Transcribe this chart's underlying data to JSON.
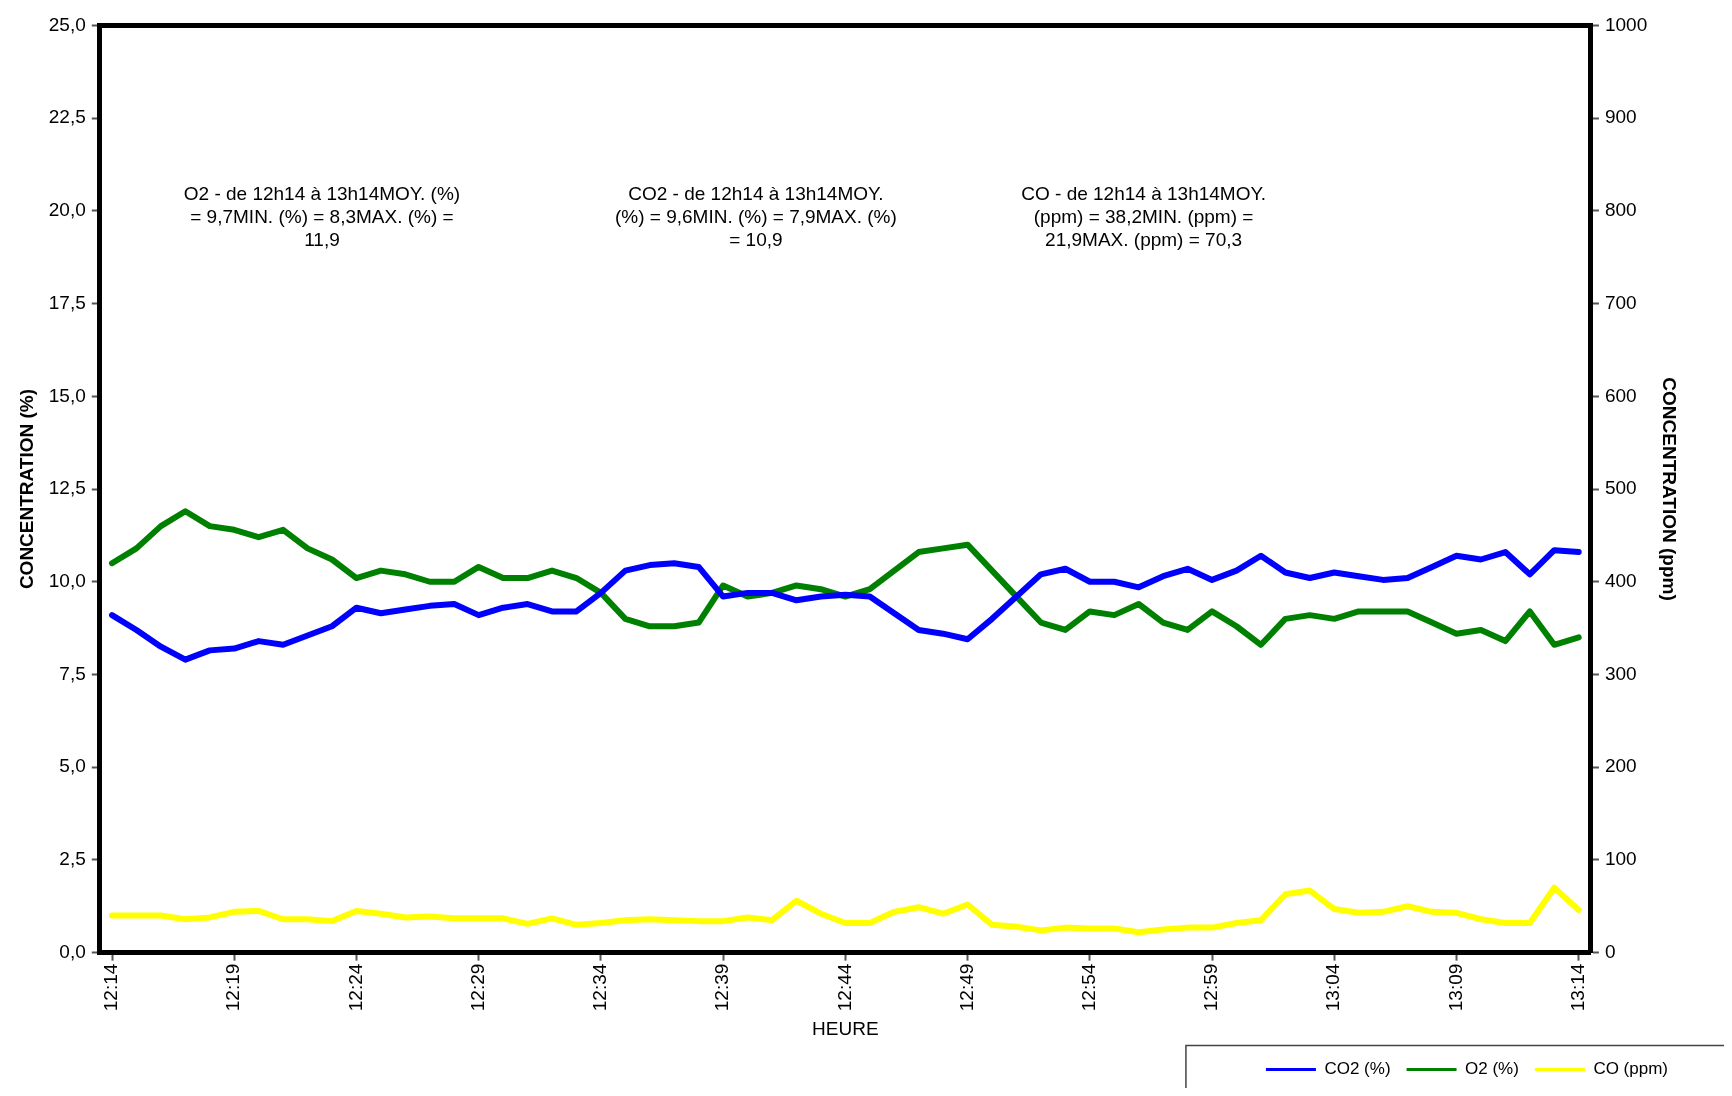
{
  "chart_data": {
    "type": "line",
    "xlabel": "HEURE",
    "ylabel": "CONCENTRATION (%)",
    "y2label": "CONCENTRATION (ppm)",
    "categories": [
      "12:14",
      null,
      null,
      null,
      null,
      "12:19",
      null,
      null,
      null,
      null,
      "12:24",
      null,
      null,
      null,
      null,
      "12:29",
      null,
      null,
      null,
      null,
      "12:34",
      null,
      null,
      null,
      null,
      "12:39",
      null,
      null,
      null,
      null,
      "12:44",
      null,
      null,
      null,
      null,
      "12:49",
      null,
      null,
      null,
      null,
      "12:54",
      null,
      null,
      null,
      null,
      "12:59",
      null,
      null,
      null,
      null,
      "13:04",
      null,
      null,
      null,
      null,
      "13:09",
      null,
      null,
      null,
      null,
      "13:14"
    ],
    "series": [
      {
        "name": "CO2 (%)",
        "color": "#0000ff",
        "values": [
          9.1,
          8.7,
          8.25,
          7.9,
          8.15,
          8.2,
          8.4,
          8.3,
          8.55,
          8.8,
          9.3,
          9.15,
          9.25,
          9.35,
          9.4,
          9.1,
          9.3,
          9.4,
          9.2,
          9.2,
          9.7,
          10.3,
          10.45,
          10.5,
          10.4,
          9.6,
          9.7,
          9.7,
          9.5,
          9.6,
          9.65,
          9.6,
          9.15,
          8.7,
          8.6,
          8.45,
          9.0,
          9.6,
          10.2,
          10.35,
          10.0,
          10.0,
          9.85,
          10.15,
          10.35,
          10.05,
          10.3,
          10.7,
          10.25,
          10.1,
          10.25,
          10.15,
          10.05,
          10.1,
          10.4,
          10.7,
          10.6,
          10.8,
          10.2,
          10.85,
          10.8
        ]
      },
      {
        "name": "O2 (%)",
        "color": "#008000",
        "values": [
          10.5,
          10.9,
          11.5,
          11.9,
          11.5,
          11.4,
          11.2,
          11.4,
          10.9,
          10.6,
          10.1,
          10.3,
          10.2,
          10.0,
          10.0,
          10.4,
          10.1,
          10.1,
          10.3,
          10.1,
          9.7,
          9.0,
          8.8,
          8.8,
          8.9,
          9.9,
          9.6,
          9.7,
          9.9,
          9.8,
          9.6,
          9.8,
          10.3,
          10.8,
          10.9,
          11.0,
          10.3,
          9.6,
          8.9,
          8.7,
          9.2,
          9.1,
          9.4,
          8.9,
          8.7,
          9.2,
          8.8,
          8.3,
          9.0,
          9.1,
          9.0,
          9.2,
          9.2,
          9.2,
          8.9,
          8.6,
          8.7,
          8.4,
          9.2,
          8.3,
          8.5
        ]
      },
      {
        "name": "CO (ppm)",
        "color": "#ffff00",
        "axis": "y2",
        "values": [
          40,
          40,
          40,
          36,
          38,
          44,
          45,
          36,
          36,
          34,
          45,
          42,
          38,
          39,
          37,
          37,
          37,
          31,
          37,
          30,
          32,
          35,
          36,
          35,
          34,
          34,
          38,
          35,
          56,
          42,
          32,
          32,
          44,
          49,
          42,
          52,
          30,
          28,
          24,
          27,
          26,
          26,
          22,
          25,
          27,
          27,
          32,
          35,
          63,
          67,
          47,
          43,
          44,
          50,
          44,
          43,
          36,
          32,
          32,
          70,
          46
        ]
      }
    ],
    "ylim": [
      0,
      25
    ],
    "yticks": [
      {
        "value": 0,
        "label": "0,0"
      },
      {
        "value": 2.5,
        "label": "2,5"
      },
      {
        "value": 5,
        "label": "5,0"
      },
      {
        "value": 7.5,
        "label": "7,5"
      },
      {
        "value": 10,
        "label": "10,0"
      },
      {
        "value": 12.5,
        "label": "12,5"
      },
      {
        "value": 15,
        "label": "15,0"
      },
      {
        "value": 17.5,
        "label": "17,5"
      },
      {
        "value": 20,
        "label": "20,0"
      },
      {
        "value": 22.5,
        "label": "22,5"
      },
      {
        "value": 25,
        "label": "25,0"
      }
    ],
    "y2lim": [
      0,
      1000
    ],
    "y2ticks": [
      0,
      100,
      200,
      300,
      400,
      500,
      600,
      700,
      800,
      900,
      1000
    ],
    "annotations": [
      "O2 - de 12h14 à 13h14MOY. (%) = 9,7MIN. (%) = 8,3MAX. (%) = 11,9",
      "CO2 - de 12h14 à 13h14MOY. (%) = 9,6MIN. (%) = 7,9MAX. (%) = 10,9",
      "CO - de 12h14 à 13h14MOY. (ppm) = 38,2MIN. (ppm) = 21,9MAX. (ppm) = 70,3"
    ],
    "legend": "bottom right",
    "grid": false,
    "marker": "none",
    "line_style": "solid"
  }
}
